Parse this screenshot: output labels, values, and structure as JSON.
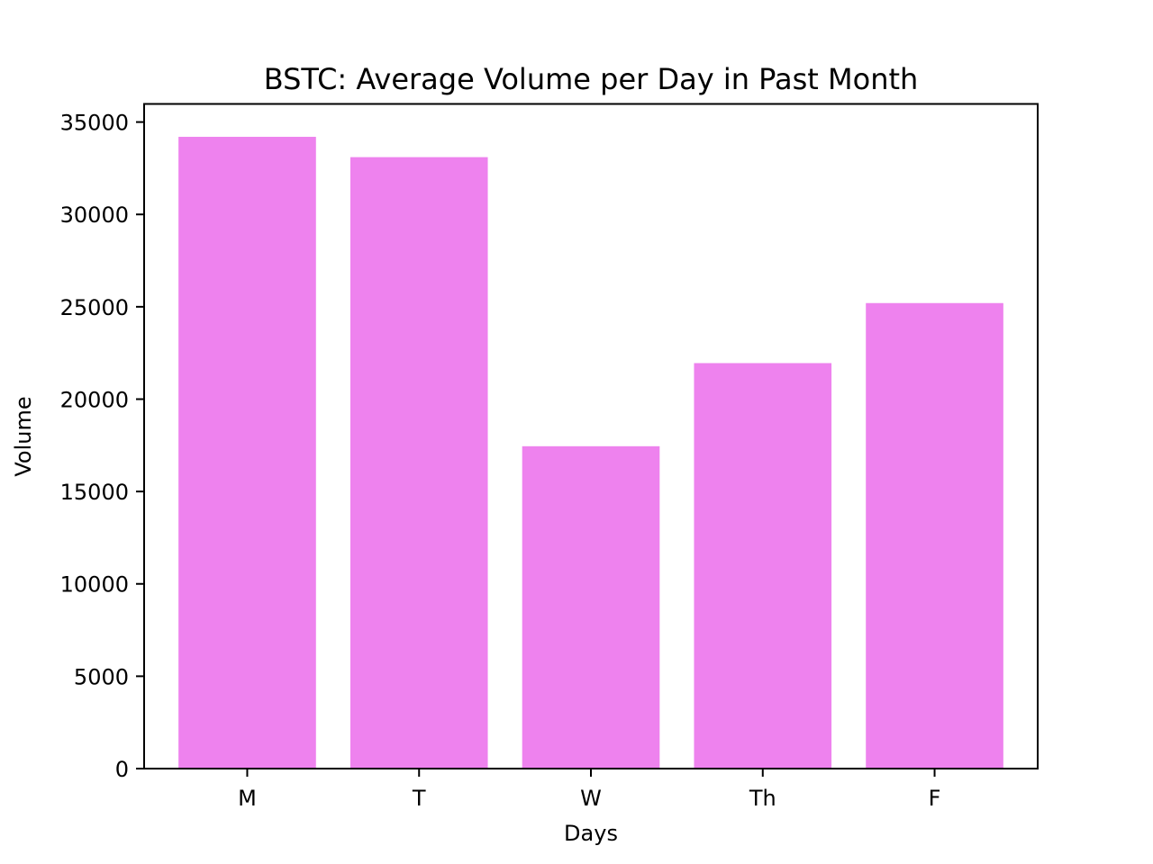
{
  "chart_data": {
    "type": "bar",
    "title": "BSTC: Average Volume per Day in Past Month",
    "xlabel": "Days",
    "ylabel": "Volume",
    "categories": [
      "M",
      "T",
      "W",
      "Th",
      "F"
    ],
    "values": [
      34200,
      33100,
      17450,
      21950,
      25200
    ],
    "ylim": [
      0,
      35980
    ],
    "yticks": [
      0,
      5000,
      10000,
      15000,
      20000,
      25000,
      30000,
      35000
    ],
    "ytick_labels": [
      "0",
      "5000",
      "10000",
      "15000",
      "20000",
      "25000",
      "30000",
      "35000"
    ],
    "bar_color": "#ee82ee",
    "grid": false,
    "legend": "none"
  }
}
